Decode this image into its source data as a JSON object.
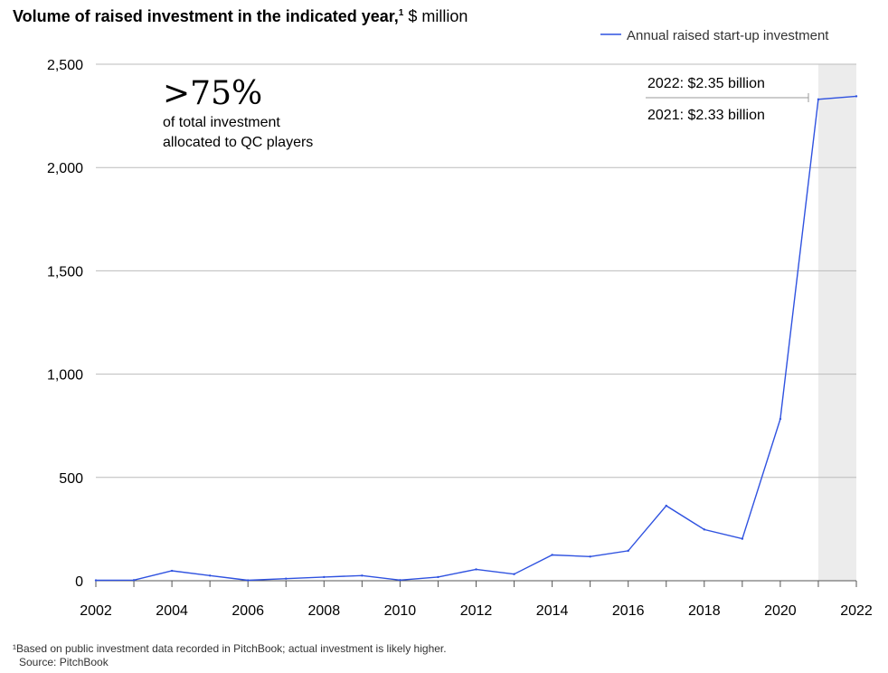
{
  "header": {
    "title": "Volume of raised investment in the indicated year,",
    "footnote_mark": "1",
    "unit": "$ million"
  },
  "legend": {
    "label": "Annual raised start-up investment",
    "color": "#2f52e0",
    "placement": "top-right"
  },
  "callout": {
    "value": ">75%",
    "line1": "of total investment",
    "line2": "allocated to QC players"
  },
  "annotations": {
    "y2022": "2022:  $2.35 billion",
    "y2021": "2021:  $2.33 billion"
  },
  "footnote": {
    "note": "¹Based on public investment data recorded in PitchBook; actual investment is likely higher.",
    "source": "Source: PitchBook"
  },
  "chart_data": {
    "type": "line",
    "x": [
      2002,
      2003,
      2004,
      2005,
      2006,
      2007,
      2008,
      2009,
      2010,
      2011,
      2012,
      2013,
      2014,
      2015,
      2016,
      2017,
      2018,
      2019,
      2020,
      2021,
      2022
    ],
    "series": [
      {
        "name": "Annual raised start-up investment",
        "values": [
          2,
          3,
          48,
          25,
          2,
          10,
          18,
          25,
          3,
          18,
          55,
          32,
          125,
          117,
          145,
          363,
          248,
          203,
          783,
          2330,
          2345
        ]
      }
    ],
    "ylim": [
      0,
      2500
    ],
    "yticks": [
      0,
      500,
      1000,
      1500,
      2000,
      2500
    ],
    "ytick_labels": [
      "0",
      "500",
      "1,000",
      "1,500",
      "2,000",
      "2,500"
    ],
    "xticks": [
      2002,
      2004,
      2006,
      2008,
      2010,
      2012,
      2014,
      2016,
      2018,
      2020,
      2022
    ],
    "xtick_labels": [
      "2002",
      "2004",
      "2006",
      "2008",
      "2010",
      "2012",
      "2014",
      "2016",
      "2018",
      "2020",
      "2022"
    ],
    "highlight_range": [
      2021,
      2022
    ],
    "grid": true
  }
}
